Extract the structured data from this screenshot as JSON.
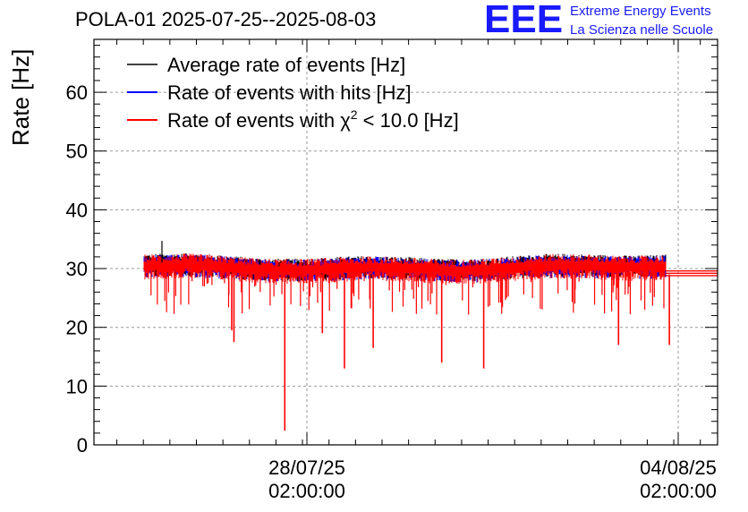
{
  "header": {
    "title": "POLA-01 2025-07-25--2025-08-03",
    "logo_text": "EEE",
    "logo_line1": "Extreme Energy Events",
    "logo_line2": "La Scienza nelle Scuole"
  },
  "colors": {
    "average": "#000000",
    "hits": "#0000ff",
    "chi2": "#ff0000",
    "logo": "#1a1aff",
    "grid": "#999999"
  },
  "chart_data": {
    "type": "line",
    "ylabel": "Rate [Hz]",
    "ylim": [
      0,
      69
    ],
    "yticks": [
      0,
      10,
      20,
      30,
      40,
      50,
      60
    ],
    "x_tick_labels": [
      {
        "date": "28/07/25",
        "time": "02:00:00"
      },
      {
        "date": "04/08/25",
        "time": "02:00:00"
      }
    ],
    "grid": true,
    "legend_position": "top-left",
    "legend": [
      {
        "label": "Average rate of events [Hz]",
        "color": "#000000"
      },
      {
        "label": "Rate of events with hits [Hz]",
        "color": "#0000ff"
      },
      {
        "label_pre": "Rate of events with χ",
        "label_sup": "2",
        "label_post": " < 10.0 [Hz]",
        "color": "#ff0000"
      }
    ],
    "series": [
      {
        "name": "Average rate of events [Hz]",
        "typical": 30.5,
        "noise": 1.2,
        "spike": 34.7
      },
      {
        "name": "Rate of events with hits [Hz]",
        "typical": 30.4,
        "noise": 1.2
      },
      {
        "name": "Rate of events with χ² < 10.0 [Hz]",
        "typical": 30.0,
        "noise": 1.3,
        "dips": [
          {
            "t": "26/07/25 17:00",
            "value": 17.5
          },
          {
            "t": "26/07/25 16:00",
            "value": 19.5
          },
          {
            "t": "27/07/25 16:00",
            "value": 2.4
          },
          {
            "t": "28/07/25 09:00",
            "value": 19.0
          },
          {
            "t": "28/07/25 19:00",
            "value": 13.0
          },
          {
            "t": "29/07/25 08:00",
            "value": 16.5
          },
          {
            "t": "31/07/25 10:00",
            "value": 13.0
          },
          {
            "t": "30/07/25 15:00",
            "value": 14.0
          },
          {
            "t": "02/08/25 23:00",
            "value": 17.0
          },
          {
            "t": "03/08/25 22:00",
            "value": 17.0
          }
        ]
      },
      {
        "name": "Average rate of events [Hz]",
        "flat_tail": true,
        "values": [
          29.6,
          29.2,
          28.8
        ]
      }
    ]
  }
}
